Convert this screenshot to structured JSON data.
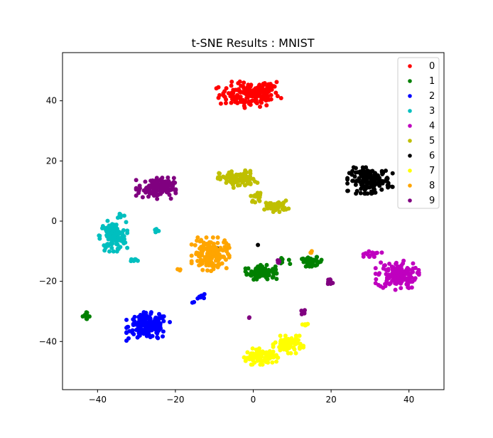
{
  "chart_data": {
    "type": "scatter",
    "title": "t-SNE Results : MNIST",
    "xlabel": "",
    "ylabel": "",
    "xlim": [
      -49,
      49
    ],
    "ylim": [
      -56,
      56
    ],
    "xticks": [
      -40,
      -20,
      0,
      20,
      40
    ],
    "yticks": [
      -40,
      -20,
      0,
      20,
      40
    ],
    "grid": false,
    "legend_position": "upper-right",
    "series": [
      {
        "name": "0",
        "color": "#ff0000",
        "clusters": [
          {
            "center": [
              -1,
              42
            ],
            "spread": [
              7,
              3.6
            ],
            "count": 150
          },
          {
            "center": [
              4,
              45
            ],
            "spread": [
              2.5,
              1.5
            ],
            "count": 20
          }
        ]
      },
      {
        "name": "1",
        "color": "#008000",
        "clusters": [
          {
            "center": [
              2,
              -17
            ],
            "spread": [
              3.3,
              2.0
            ],
            "count": 90
          },
          {
            "center": [
              15,
              -13.5
            ],
            "spread": [
              2.6,
              1.3
            ],
            "count": 40
          },
          {
            "center": [
              -43,
              -31.5
            ],
            "spread": [
              0.9,
              1.0
            ],
            "count": 14
          },
          {
            "center": [
              8,
              -13
            ],
            "spread": [
              1.2,
              1.0
            ],
            "count": 6
          }
        ]
      },
      {
        "name": "2",
        "color": "#0000ff",
        "clusters": [
          {
            "center": [
              -27,
              -35
            ],
            "spread": [
              4.6,
              3.9
            ],
            "count": 170
          },
          {
            "center": [
              -13,
              -25
            ],
            "spread": [
              1.4,
              0.6
            ],
            "count": 8
          },
          {
            "center": [
              -15.5,
              -27
            ],
            "spread": [
              0.4,
              0.4
            ],
            "count": 2
          }
        ]
      },
      {
        "name": "3",
        "color": "#00bfbf",
        "clusters": [
          {
            "center": [
              -36,
              -5
            ],
            "spread": [
              3.0,
              4.2
            ],
            "count": 130
          },
          {
            "center": [
              -30,
              -13
            ],
            "spread": [
              1.5,
              0.5
            ],
            "count": 8
          },
          {
            "center": [
              -25,
              -3
            ],
            "spread": [
              0.6,
              0.8
            ],
            "count": 8
          },
          {
            "center": [
              -34,
              2
            ],
            "spread": [
              1.0,
              1.0
            ],
            "count": 6
          }
        ]
      },
      {
        "name": "4",
        "color": "#bf00bf",
        "clusters": [
          {
            "center": [
              37,
              -18
            ],
            "spread": [
              4.6,
              4.0
            ],
            "count": 140
          },
          {
            "center": [
              30,
              -11
            ],
            "spread": [
              2.5,
              1.0
            ],
            "count": 15
          }
        ]
      },
      {
        "name": "5",
        "color": "#bfbf00",
        "clusters": [
          {
            "center": [
              -4,
              14
            ],
            "spread": [
              4.2,
              2.4
            ],
            "count": 100
          },
          {
            "center": [
              6,
              5
            ],
            "spread": [
              2.6,
              1.6
            ],
            "count": 40
          },
          {
            "center": [
              1,
              8
            ],
            "spread": [
              1.5,
              1.5
            ],
            "count": 15
          }
        ]
      },
      {
        "name": "6",
        "color": "#000000",
        "clusters": [
          {
            "center": [
              30,
              13.5
            ],
            "spread": [
              4.8,
              3.6
            ],
            "count": 150
          },
          {
            "center": [
              -9,
              -9
            ],
            "spread": [
              0.4,
              0.4
            ],
            "count": 1
          },
          {
            "center": [
              1,
              -8
            ],
            "spread": [
              0.4,
              0.4
            ],
            "count": 1
          }
        ]
      },
      {
        "name": "7",
        "color": "#ffff00",
        "clusters": [
          {
            "center": [
              2,
              -45
            ],
            "spread": [
              3.6,
              2.2
            ],
            "count": 90
          },
          {
            "center": [
              9,
              -41
            ],
            "spread": [
              3.2,
              2.4
            ],
            "count": 80
          },
          {
            "center": [
              13.5,
              -34.5
            ],
            "spread": [
              1.0,
              0.6
            ],
            "count": 6
          }
        ]
      },
      {
        "name": "8",
        "color": "#ffa500",
        "clusters": [
          {
            "center": [
              -11,
              -11
            ],
            "spread": [
              4.0,
              4.6
            ],
            "count": 160
          },
          {
            "center": [
              -19,
              -16
            ],
            "spread": [
              0.6,
              0.6
            ],
            "count": 3
          },
          {
            "center": [
              15,
              -10
            ],
            "spread": [
              0.6,
              1.0
            ],
            "count": 3
          }
        ]
      },
      {
        "name": "9",
        "color": "#800080",
        "clusters": [
          {
            "center": [
              -25,
              11
            ],
            "spread": [
              4.2,
              3.0
            ],
            "count": 130
          },
          {
            "center": [
              19.5,
              -20.5
            ],
            "spread": [
              0.8,
              1.2
            ],
            "count": 12
          },
          {
            "center": [
              13,
              -30
            ],
            "spread": [
              0.6,
              1.2
            ],
            "count": 6
          },
          {
            "center": [
              6.5,
              -13.5
            ],
            "spread": [
              0.5,
              1.0
            ],
            "count": 5
          },
          {
            "center": [
              -1,
              -32
            ],
            "spread": [
              0.4,
              0.4
            ],
            "count": 2
          }
        ]
      }
    ]
  }
}
